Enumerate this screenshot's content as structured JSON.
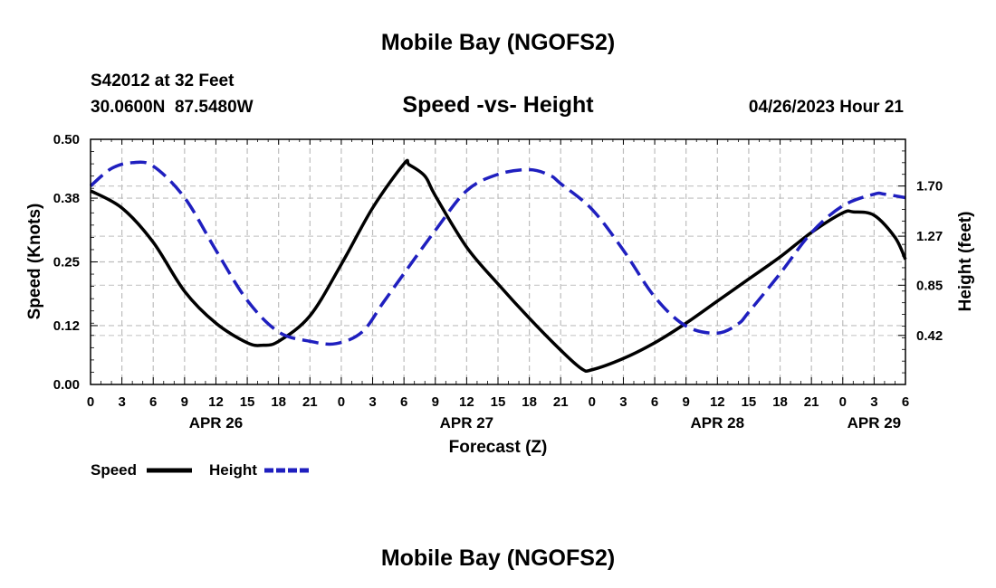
{
  "chart_data": {
    "type": "line",
    "title": "Mobile Bay (NGOFS2)",
    "subtitle": "Speed -vs- Height",
    "station": "S42012 at 32 Feet",
    "location": "30.0600N  87.5480W",
    "forecast_time": "04/26/2023 Hour 21",
    "xlabel": "Forecast (Z)",
    "ylabel_left": "Speed (Knots)",
    "ylabel_right": "Height (feet)",
    "bottom_title": "Mobile Bay (NGOFS2)",
    "x_range_hours": [
      0,
      78
    ],
    "x_tick_labels": [
      "0",
      "3",
      "6",
      "9",
      "12",
      "15",
      "18",
      "21",
      "0",
      "3",
      "6",
      "9",
      "12",
      "15",
      "18",
      "21",
      "0",
      "3",
      "6",
      "9",
      "12",
      "15",
      "18",
      "21",
      "0",
      "3",
      "6"
    ],
    "date_labels": [
      {
        "label": "APR 26",
        "hour": 12
      },
      {
        "label": "APR 27",
        "hour": 36
      },
      {
        "label": "APR 28",
        "hour": 60
      },
      {
        "label": "APR 29",
        "hour": 75
      }
    ],
    "left_axis": {
      "ylim": [
        0.0,
        0.5
      ],
      "tick_values": [
        0.0,
        0.12,
        0.25,
        0.38,
        0.5
      ],
      "tick_labels": [
        "0.00",
        "0.12",
        "0.25",
        "0.38",
        "0.50"
      ]
    },
    "right_axis": {
      "ylim": [
        0.0,
        2.1
      ],
      "tick_values": [
        0.42,
        0.85,
        1.27,
        1.7
      ],
      "tick_labels": [
        "0.42",
        "0.85",
        "1.27",
        "1.70"
      ]
    },
    "grid": true,
    "legend": {
      "position": "bottom-left",
      "entries": [
        "Speed",
        "Height"
      ]
    },
    "series": [
      {
        "name": "Speed",
        "axis": "left",
        "color": "#000000",
        "dash": "solid",
        "x": [
          0,
          3,
          6,
          9,
          12,
          15,
          16.5,
          18,
          21,
          24,
          27,
          30,
          30.5,
          32,
          33,
          36,
          39,
          42,
          45,
          47,
          48,
          51,
          54,
          57,
          60,
          63,
          66,
          69,
          72,
          73,
          75,
          77,
          78
        ],
        "values": [
          0.395,
          0.36,
          0.29,
          0.19,
          0.125,
          0.085,
          0.08,
          0.088,
          0.14,
          0.245,
          0.36,
          0.45,
          0.448,
          0.425,
          0.385,
          0.28,
          0.205,
          0.135,
          0.07,
          0.032,
          0.03,
          0.053,
          0.085,
          0.125,
          0.17,
          0.215,
          0.26,
          0.31,
          0.35,
          0.352,
          0.345,
          0.3,
          0.255
        ]
      },
      {
        "name": "Height",
        "axis": "right",
        "color": "#1f1fbf",
        "dash": "dashed",
        "x": [
          0,
          2,
          4,
          6,
          9,
          12,
          15,
          18,
          21,
          23.5,
          26,
          28,
          30,
          33,
          36,
          39,
          42,
          44,
          45,
          48,
          51,
          54,
          57,
          60,
          62,
          63,
          66,
          69,
          72,
          75,
          76,
          78
        ],
        "values": [
          1.7,
          1.85,
          1.9,
          1.87,
          1.6,
          1.15,
          0.72,
          0.45,
          0.37,
          0.35,
          0.45,
          0.7,
          0.95,
          1.32,
          1.66,
          1.8,
          1.84,
          1.79,
          1.72,
          1.5,
          1.15,
          0.75,
          0.5,
          0.44,
          0.52,
          0.62,
          0.95,
          1.3,
          1.53,
          1.63,
          1.63,
          1.6
        ]
      }
    ]
  }
}
